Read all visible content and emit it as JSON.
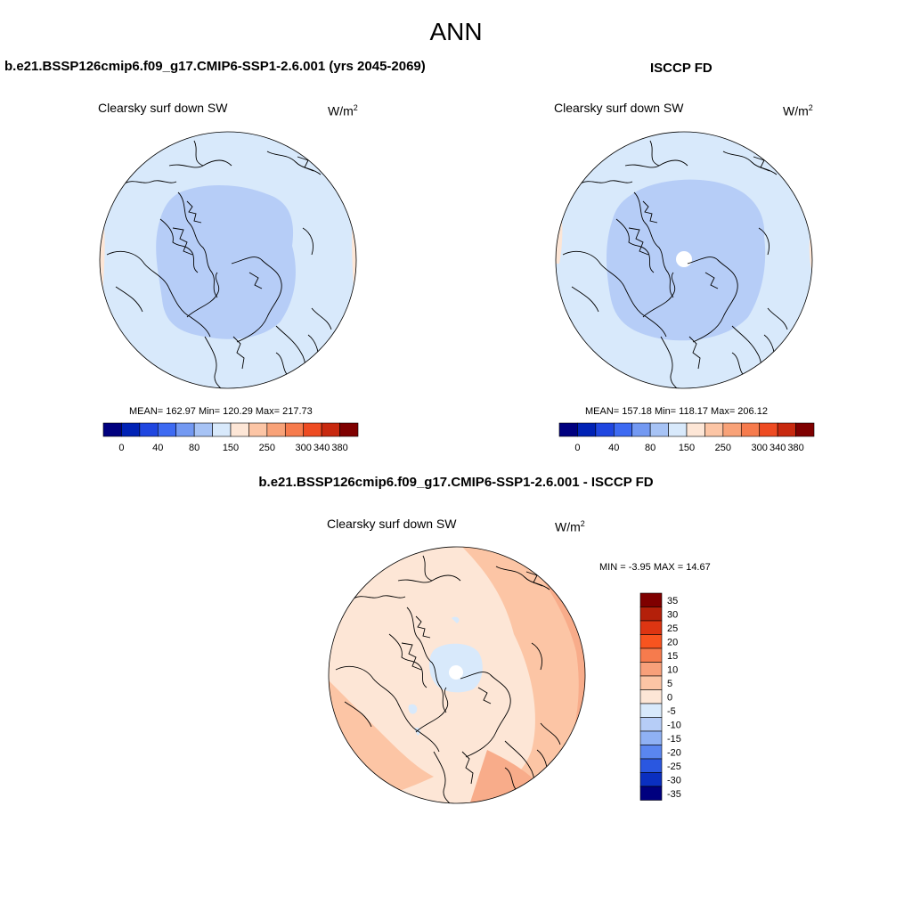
{
  "title": "ANN",
  "colors": {
    "lightblue": "#d8e9fb",
    "medblue": "#b6cdf7",
    "peach": "#fde6d6",
    "salmon": "#fcc5a5",
    "salmon2": "#f8ac8a",
    "coast": "#000000",
    "rim": "#a0522d"
  },
  "panels": {
    "model": {
      "title": "b.e21.BSSP126cmip6.f09_g17.CMIP6-SSP1-2.6.001 (yrs 2045-2069)",
      "variable": "Clearsky surf down SW",
      "unit": "W/m",
      "unit_sup": "2",
      "stats": "MEAN= 162.97  Min= 120.29  Max= 217.73"
    },
    "obs": {
      "title": "ISCCP FD",
      "variable": "Clearsky surf down SW",
      "unit": "W/m",
      "unit_sup": "2",
      "stats": "MEAN= 157.18  Min= 118.17  Max= 206.12"
    },
    "diff": {
      "title": "b.e21.BSSP126cmip6.f09_g17.CMIP6-SSP1-2.6.001 - ISCCP FD",
      "variable": "Clearsky surf down SW",
      "unit": "W/m",
      "unit_sup": "2",
      "minmax": "MIN =  -3.95 MAX =  14.67"
    }
  },
  "colorbar_abs": {
    "colors": [
      "#00007f",
      "#0022b5",
      "#1f46e0",
      "#3d6af2",
      "#7399f2",
      "#a7c3f5",
      "#d8e9fb",
      "#fde6d6",
      "#fcc5a5",
      "#f8a278",
      "#f67b4d",
      "#ee4b22",
      "#c8290f",
      "#7f0000"
    ],
    "ticks": [
      "0",
      "40",
      "80",
      "150",
      "250",
      "300",
      "340",
      "380"
    ],
    "tick_boundaries": [
      1,
      3,
      5,
      7,
      9,
      11,
      12,
      13
    ]
  },
  "colorbar_diff": {
    "colors": [
      "#7f0000",
      "#b4200a",
      "#dd3512",
      "#f8541f",
      "#f67b4d",
      "#f8a07a",
      "#fcc5a5",
      "#fde6d6",
      "#d8e9fb",
      "#b6cdf7",
      "#8fb1f4",
      "#5a86f0",
      "#2a57e0",
      "#0a2fc0",
      "#00007f"
    ],
    "labels": [
      "35",
      "30",
      "25",
      "20",
      "15",
      "10",
      "5",
      "0",
      "-5",
      "-10",
      "-15",
      "-20",
      "-25",
      "-30",
      "-35"
    ]
  }
}
